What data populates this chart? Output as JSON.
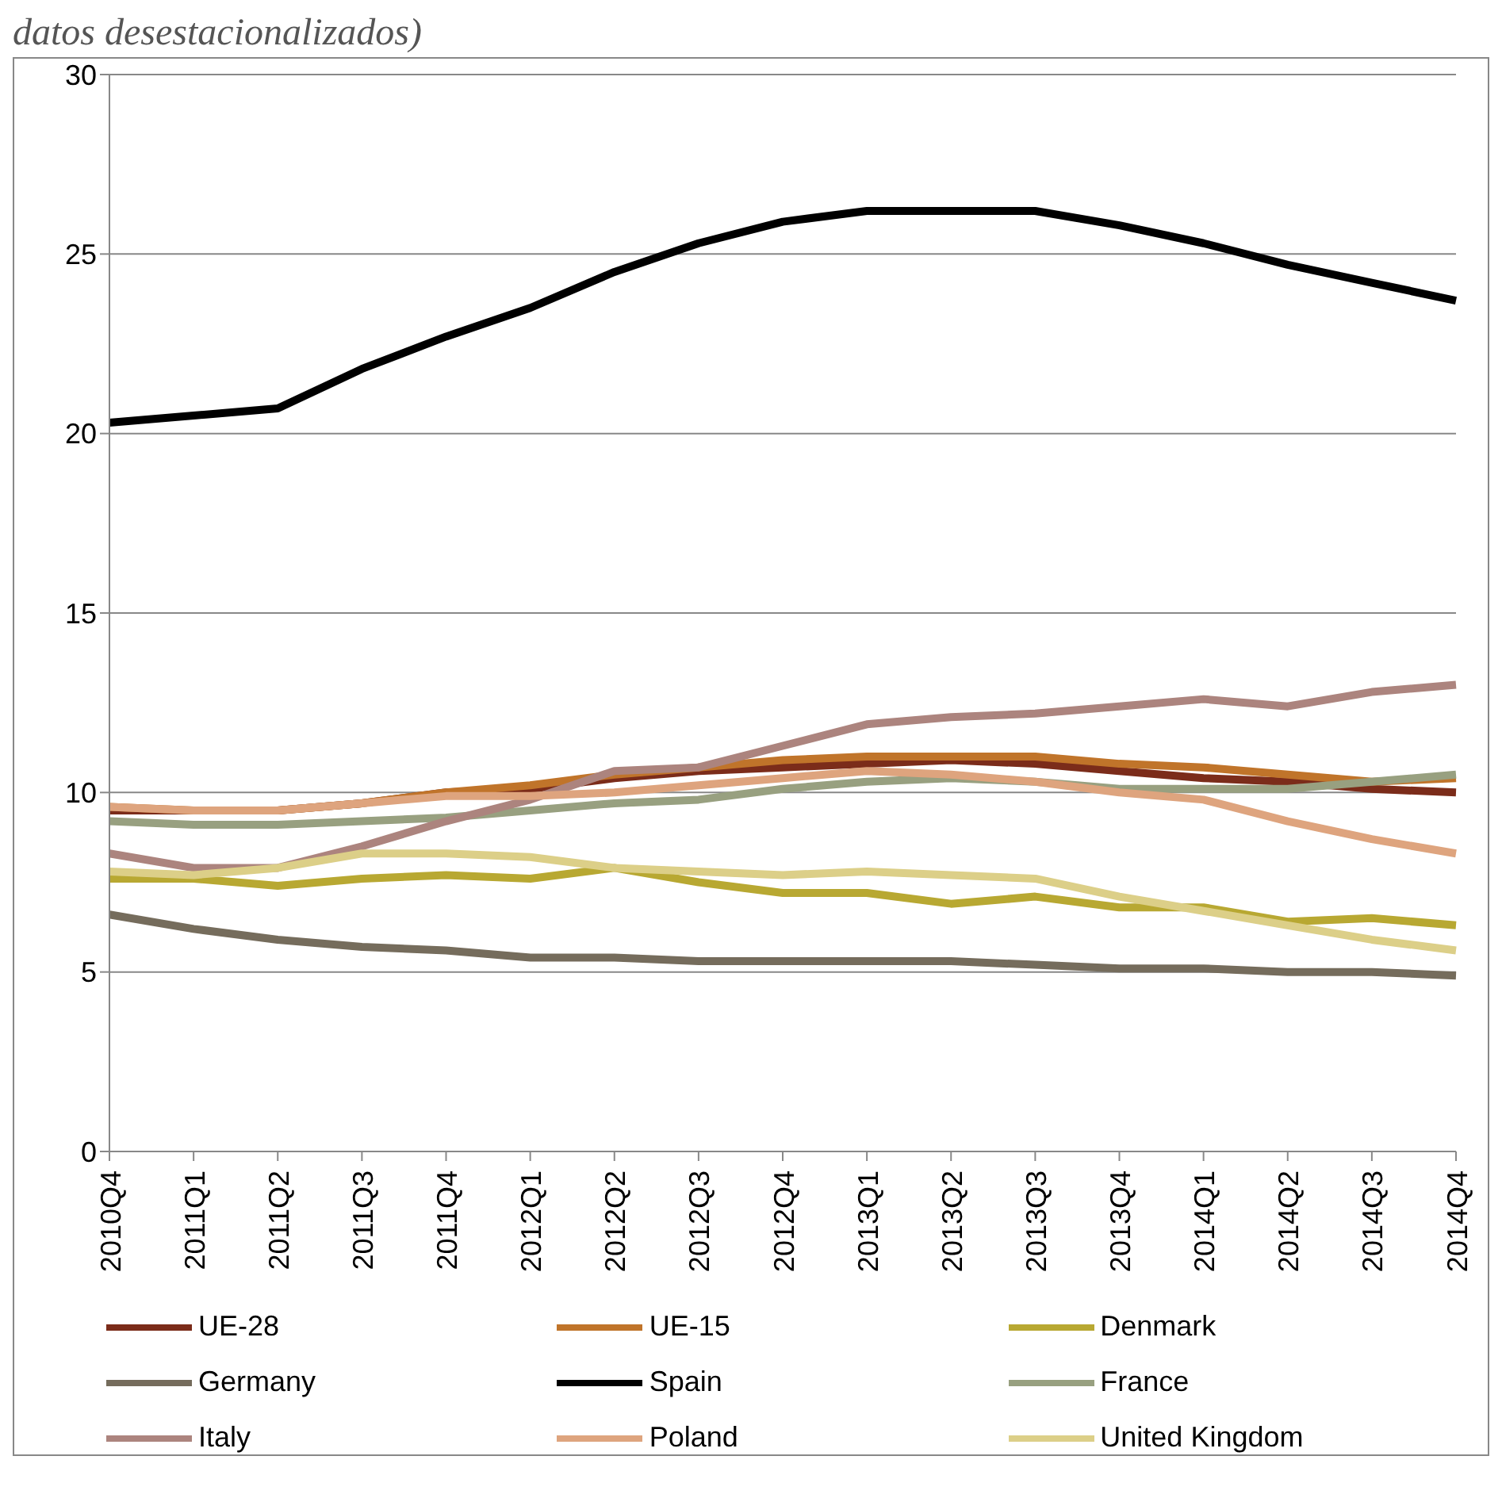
{
  "chart_data": {
    "type": "line",
    "title": "datos desestacionalizados)",
    "categories": [
      "2010Q4",
      "2011Q1",
      "2011Q2",
      "2011Q3",
      "2011Q4",
      "2012Q1",
      "2012Q2",
      "2012Q3",
      "2012Q4",
      "2013Q1",
      "2013Q2",
      "2013Q3",
      "2013Q4",
      "2014Q1",
      "2014Q2",
      "2014Q3",
      "2014Q4"
    ],
    "series": [
      {
        "name": "UE-28",
        "color": "#7b2c1a",
        "values": [
          9.5,
          9.5,
          9.5,
          9.7,
          10.0,
          10.1,
          10.4,
          10.6,
          10.7,
          10.8,
          10.9,
          10.8,
          10.6,
          10.4,
          10.3,
          10.1,
          10.0
        ]
      },
      {
        "name": "UE-15",
        "color": "#c0742a",
        "values": [
          9.6,
          9.5,
          9.5,
          9.7,
          10.0,
          10.2,
          10.5,
          10.7,
          10.9,
          11.0,
          11.0,
          11.0,
          10.8,
          10.7,
          10.5,
          10.3,
          10.4
        ]
      },
      {
        "name": "Denmark",
        "color": "#b8a832",
        "values": [
          7.6,
          7.6,
          7.4,
          7.6,
          7.7,
          7.6,
          7.9,
          7.5,
          7.2,
          7.2,
          6.9,
          7.1,
          6.8,
          6.8,
          6.4,
          6.5,
          6.3
        ]
      },
      {
        "name": "Germany",
        "color": "#756c5c",
        "values": [
          6.6,
          6.2,
          5.9,
          5.7,
          5.6,
          5.4,
          5.4,
          5.3,
          5.3,
          5.3,
          5.3,
          5.2,
          5.1,
          5.1,
          5.0,
          5.0,
          4.9
        ]
      },
      {
        "name": "Spain",
        "color": "#000000",
        "values": [
          20.3,
          20.5,
          20.7,
          21.8,
          22.7,
          23.5,
          24.5,
          25.3,
          25.9,
          26.2,
          26.2,
          26.2,
          25.8,
          25.3,
          24.7,
          24.2,
          23.7
        ]
      },
      {
        "name": "France",
        "color": "#98a080",
        "values": [
          9.2,
          9.1,
          9.1,
          9.2,
          9.3,
          9.5,
          9.7,
          9.8,
          10.1,
          10.3,
          10.4,
          10.3,
          10.1,
          10.1,
          10.1,
          10.3,
          10.5
        ]
      },
      {
        "name": "Italy",
        "color": "#ac847e",
        "values": [
          8.3,
          7.9,
          7.9,
          8.5,
          9.2,
          9.8,
          10.6,
          10.7,
          11.3,
          11.9,
          12.1,
          12.2,
          12.4,
          12.6,
          12.4,
          12.8,
          13.0
        ]
      },
      {
        "name": "Poland",
        "color": "#dea47e",
        "values": [
          9.6,
          9.5,
          9.5,
          9.7,
          9.9,
          9.9,
          10.0,
          10.2,
          10.4,
          10.6,
          10.5,
          10.3,
          10.0,
          9.8,
          9.2,
          8.7,
          8.3
        ]
      },
      {
        "name": "United Kingdom",
        "color": "#dccf88",
        "values": [
          7.8,
          7.7,
          7.9,
          8.3,
          8.3,
          8.2,
          7.9,
          7.8,
          7.7,
          7.8,
          7.7,
          7.6,
          7.1,
          6.7,
          6.3,
          5.9,
          5.6
        ]
      }
    ],
    "ylim": [
      0,
      30
    ],
    "yticks": [
      0,
      5,
      10,
      15,
      20,
      25,
      30
    ],
    "grid": "y",
    "legend": "bottom",
    "marker": "none",
    "line_style": "solid"
  }
}
